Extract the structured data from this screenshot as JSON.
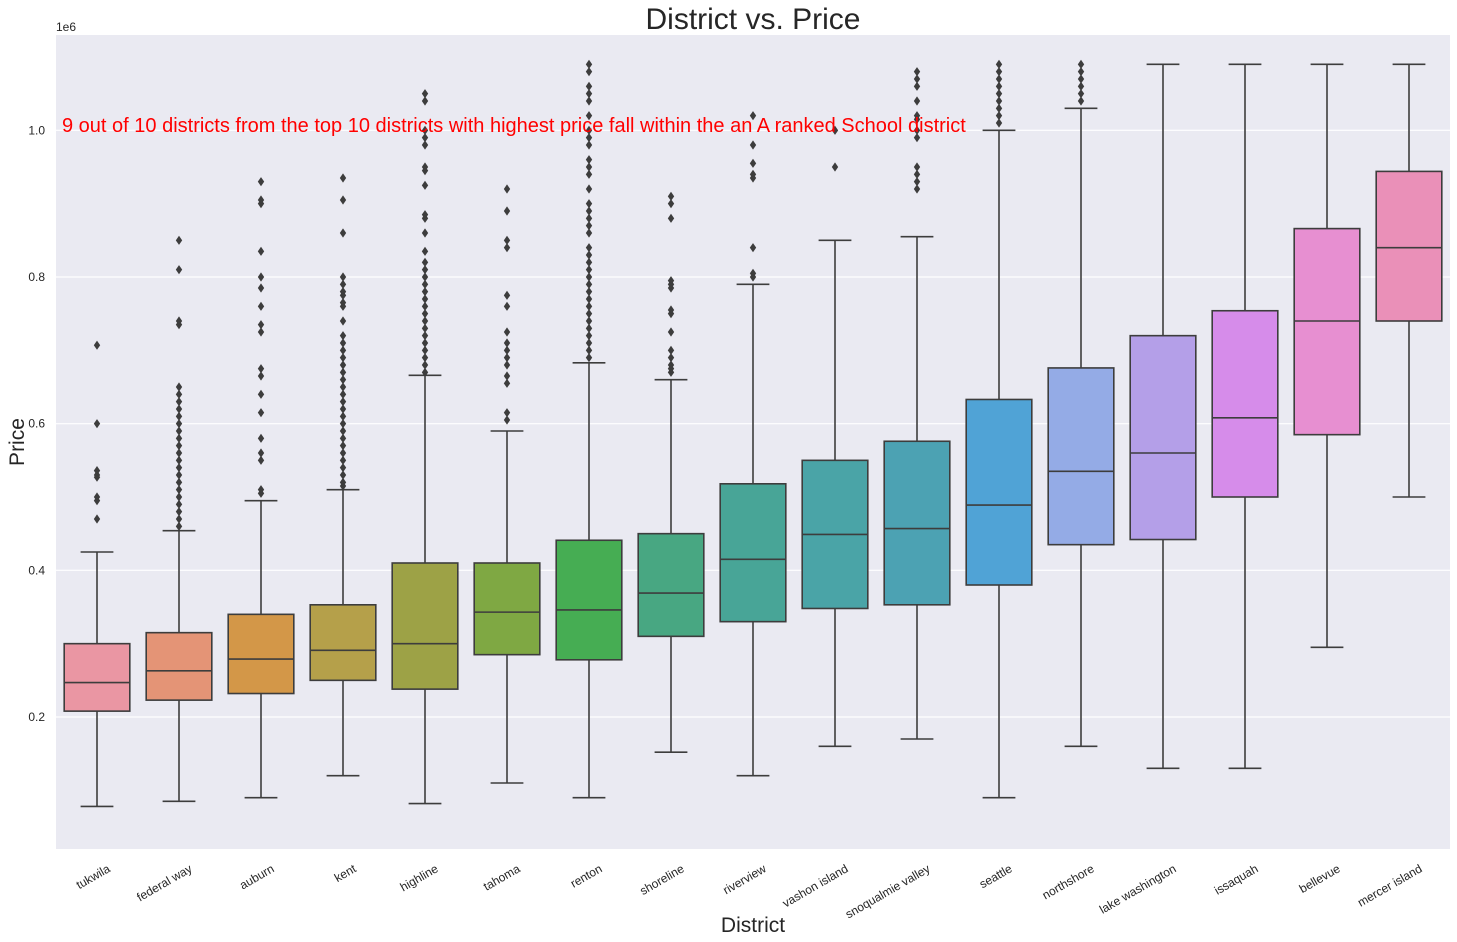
{
  "chart_data": {
    "type": "boxplot",
    "title": "District vs. Price",
    "xlabel": "District",
    "ylabel": "Price",
    "y_offset_label": "1e6",
    "y_scale_multiplier": 1000000,
    "ylim": [
      20000,
      1130000
    ],
    "y_ticks": [
      0.2,
      0.4,
      0.6,
      0.8,
      1.0
    ],
    "grid": true,
    "annotation": "9 out of 10 districts from the top 10 districts with highest price fall within the an A ranked School district",
    "categories": [
      "tukwila",
      "federal way",
      "auburn",
      "kent",
      "highline",
      "tahoma",
      "renton",
      "shoreline",
      "riverview",
      "vashon island",
      "snoqualmie valley",
      "seattle",
      "northshore",
      "lake washington",
      "issaquah",
      "bellevue",
      "mercer island"
    ],
    "boxes": [
      {
        "district": "tukwila",
        "color": "#ea96a3",
        "whislo": 78000,
        "q1": 208000,
        "med": 247000,
        "q3": 300000,
        "whishi": 425000,
        "fliers": [
          470000,
          495000,
          500000,
          527000,
          530000,
          536000,
          600000,
          707000
        ]
      },
      {
        "district": "federal way",
        "color": "#e49476",
        "whislo": 85000,
        "q1": 223000,
        "med": 263000,
        "q3": 315000,
        "whishi": 454000,
        "fliers": [
          460000,
          470000,
          480000,
          490000,
          500000,
          510000,
          520000,
          530000,
          540000,
          550000,
          560000,
          570000,
          580000,
          590000,
          600000,
          610000,
          620000,
          630000,
          640000,
          650000,
          735000,
          740000,
          810000,
          850000
        ]
      },
      {
        "district": "auburn",
        "color": "#d39748",
        "whislo": 90000,
        "q1": 232000,
        "med": 279000,
        "q3": 340000,
        "whishi": 495000,
        "fliers": [
          505000,
          510000,
          550000,
          560000,
          580000,
          615000,
          640000,
          665000,
          675000,
          725000,
          735000,
          760000,
          785000,
          800000,
          835000,
          900000,
          905000,
          930000
        ]
      },
      {
        "district": "kent",
        "color": "#b5a04a",
        "whislo": 120000,
        "q1": 250000,
        "med": 291000,
        "q3": 353000,
        "whishi": 510000,
        "fliers": [
          515000,
          520000,
          530000,
          540000,
          550000,
          560000,
          570000,
          580000,
          590000,
          600000,
          610000,
          620000,
          630000,
          640000,
          650000,
          660000,
          670000,
          680000,
          690000,
          700000,
          710000,
          720000,
          740000,
          760000,
          765000,
          775000,
          780000,
          790000,
          800000,
          860000,
          905000,
          935000
        ]
      },
      {
        "district": "highline",
        "color": "#9da246",
        "whislo": 82000,
        "q1": 238000,
        "med": 300000,
        "q3": 410000,
        "whishi": 666000,
        "fliers": [
          670000,
          680000,
          690000,
          700000,
          710000,
          720000,
          730000,
          740000,
          750000,
          760000,
          770000,
          780000,
          790000,
          800000,
          810000,
          820000,
          835000,
          860000,
          880000,
          885000,
          925000,
          945000,
          950000,
          980000,
          990000,
          1000000,
          1040000,
          1050000
        ]
      },
      {
        "district": "tahoma",
        "color": "#7fa843",
        "whislo": 110000,
        "q1": 285000,
        "med": 343000,
        "q3": 410000,
        "whishi": 590000,
        "fliers": [
          605000,
          615000,
          655000,
          665000,
          680000,
          690000,
          700000,
          710000,
          725000,
          760000,
          775000,
          840000,
          850000,
          890000,
          920000
        ]
      },
      {
        "district": "renton",
        "color": "#46ad53",
        "whislo": 90000,
        "q1": 278000,
        "med": 346000,
        "q3": 441000,
        "whishi": 683000,
        "fliers": [
          690000,
          700000,
          710000,
          720000,
          730000,
          740000,
          750000,
          760000,
          770000,
          780000,
          790000,
          800000,
          810000,
          820000,
          830000,
          840000,
          860000,
          870000,
          880000,
          890000,
          900000,
          920000,
          940000,
          950000,
          960000,
          980000,
          990000,
          1000000,
          1020000,
          1040000,
          1050000,
          1060000,
          1080000,
          1090000
        ]
      },
      {
        "district": "shoreline",
        "color": "#48a782",
        "whislo": 152000,
        "q1": 310000,
        "med": 369000,
        "q3": 450000,
        "whishi": 660000,
        "fliers": [
          670000,
          675000,
          680000,
          690000,
          700000,
          725000,
          750000,
          755000,
          785000,
          790000,
          795000,
          880000,
          900000,
          910000
        ]
      },
      {
        "district": "riverview",
        "color": "#48a597",
        "whislo": 120000,
        "q1": 330000,
        "med": 415000,
        "q3": 518000,
        "whishi": 790000,
        "fliers": [
          800000,
          805000,
          840000,
          935000,
          940000,
          955000,
          980000,
          1020000
        ]
      },
      {
        "district": "vashon island",
        "color": "#4aa4a7",
        "whislo": 160000,
        "q1": 348000,
        "med": 449000,
        "q3": 550000,
        "whishi": 850000,
        "fliers": [
          950000,
          1000000
        ]
      },
      {
        "district": "snoqualmie valley",
        "color": "#4ca2b3",
        "whislo": 170000,
        "q1": 353000,
        "med": 457000,
        "q3": 576000,
        "whishi": 855000,
        "fliers": [
          920000,
          930000,
          940000,
          950000,
          990000,
          1000000,
          1015000,
          1020000,
          1040000,
          1060000,
          1070000,
          1080000
        ]
      },
      {
        "district": "seattle",
        "color": "#50a3d6",
        "whislo": 90000,
        "q1": 380000,
        "med": 489000,
        "q3": 633000,
        "whishi": 1000000,
        "fliers": [
          1010000,
          1020000,
          1030000,
          1040000,
          1050000,
          1060000,
          1070000,
          1080000,
          1090000
        ]
      },
      {
        "district": "northshore",
        "color": "#94abe6",
        "whislo": 160000,
        "q1": 435000,
        "med": 535000,
        "q3": 676000,
        "whishi": 1030000,
        "fliers": [
          1040000,
          1050000,
          1060000,
          1070000,
          1080000,
          1090000
        ]
      },
      {
        "district": "lake washington",
        "color": "#b49fe8",
        "whislo": 130000,
        "q1": 442000,
        "med": 560000,
        "q3": 720000,
        "whishi": 1090000,
        "fliers": []
      },
      {
        "district": "issaquah",
        "color": "#d68cea",
        "whislo": 130000,
        "q1": 500000,
        "med": 608000,
        "q3": 754000,
        "whishi": 1090000,
        "fliers": []
      },
      {
        "district": "bellevue",
        "color": "#e78fd1",
        "whislo": 295000,
        "q1": 585000,
        "med": 740000,
        "q3": 866000,
        "whishi": 1090000,
        "fliers": []
      },
      {
        "district": "mercer island",
        "color": "#ea90b8",
        "whislo": 500000,
        "q1": 740000,
        "med": 840000,
        "q3": 944000,
        "whishi": 1090000,
        "fliers": []
      }
    ]
  },
  "colors": {
    "plot_background": "#eaeaf2",
    "grid": "#ffffff",
    "box_edge": "#3d3d3d",
    "annotation": "#ff0000"
  }
}
